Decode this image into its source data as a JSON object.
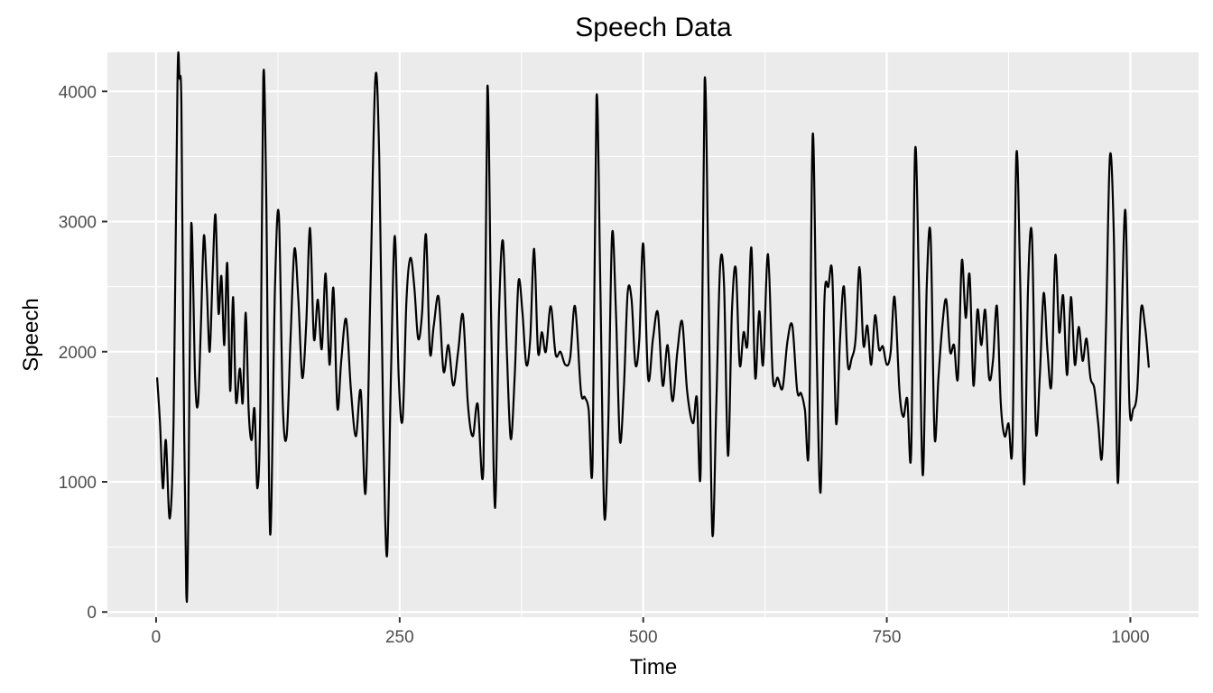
{
  "chart_data": {
    "type": "line",
    "title": "Speech Data",
    "xlabel": "Time",
    "ylabel": "Speech",
    "xlim": [
      -50,
      1070
    ],
    "ylim": [
      -40,
      4300
    ],
    "x_ticks": [
      0,
      250,
      500,
      750,
      1000
    ],
    "y_ticks": [
      0,
      1000,
      2000,
      3000,
      4000
    ],
    "x_minor_ticks": [
      125,
      375,
      625,
      875
    ],
    "y_minor_ticks": [
      500,
      1500,
      2500,
      3500
    ],
    "grid": true,
    "colors": {
      "panel": "#EBEBEB",
      "grid": "#FFFFFF",
      "line": "#000000",
      "ticks": "#333333"
    },
    "series": [
      {
        "x": [
          1,
          4,
          7,
          10,
          14,
          18,
          22,
          24,
          26,
          28,
          31,
          33,
          36,
          40,
          43,
          46,
          49,
          52,
          55,
          58,
          61,
          64,
          67,
          70,
          73,
          76,
          79,
          82,
          86,
          89,
          92,
          95,
          98,
          101,
          104,
          107,
          110,
          113,
          117,
          122,
          126,
          130,
          134,
          138,
          142,
          146,
          150,
          154,
          158,
          162,
          166,
          170,
          174,
          178,
          182,
          186,
          190,
          195,
          200,
          205,
          210,
          215,
          220,
          225,
          229,
          233,
          237,
          241,
          245,
          249,
          253,
          257,
          261,
          265,
          269,
          273,
          277,
          281,
          285,
          290,
          295,
          300,
          305,
          310,
          315,
          320,
          325,
          330,
          336,
          340,
          344,
          348,
          352,
          356,
          360,
          364,
          368,
          372,
          376,
          380,
          384,
          388,
          392,
          396,
          400,
          405,
          410,
          415,
          420,
          425,
          430,
          436,
          440,
          444,
          448,
          452,
          456,
          460,
          464,
          468,
          472,
          476,
          480,
          484,
          488,
          492,
          496,
          500,
          505,
          510,
          515,
          520,
          525,
          530,
          535,
          540,
          545,
          551,
          555,
          559,
          563,
          567,
          571,
          575,
          579,
          583,
          587,
          591,
          595,
          599,
          603,
          607,
          611,
          615,
          619,
          623,
          628,
          633,
          638,
          643,
          648,
          653,
          658,
          662,
          666,
          670,
          674,
          678,
          682,
          686,
          690,
          694,
          698,
          702,
          706,
          710,
          714,
          718,
          722,
          726,
          730,
          734,
          738,
          742,
          746,
          750,
          754,
          758,
          763,
          767,
          771,
          775,
          779,
          783,
          787,
          791,
          795,
          799,
          803,
          807,
          811,
          815,
          819,
          823,
          827,
          831,
          835,
          839,
          843,
          847,
          851,
          855,
          859,
          863,
          867,
          871,
          875,
          879,
          883,
          887,
          891,
          895,
          899,
          903,
          907,
          911,
          915,
          919,
          923,
          927,
          931,
          935,
          939,
          943,
          947,
          951,
          955,
          959,
          963,
          967,
          971,
          975,
          979,
          983,
          987,
          991,
          995,
          999,
          1003,
          1007,
          1011,
          1015,
          1019
        ],
        "values": [
          1800,
          1450,
          950,
          1320,
          720,
          1500,
          4100,
          4100,
          3900,
          2000,
          150,
          700,
          2970,
          1800,
          1600,
          2200,
          2890,
          2500,
          2000,
          2600,
          3050,
          2300,
          2580,
          2050,
          2680,
          1700,
          2420,
          1620,
          1870,
          1610,
          2300,
          1550,
          1320,
          1560,
          950,
          1600,
          4100,
          3200,
          600,
          2500,
          3050,
          1600,
          1350,
          2100,
          2790,
          2400,
          1800,
          2200,
          2950,
          2100,
          2400,
          2020,
          2600,
          1900,
          2490,
          1570,
          1930,
          2250,
          1700,
          1350,
          1700,
          920,
          2500,
          4100,
          3500,
          1500,
          430,
          1800,
          2890,
          1800,
          1480,
          2400,
          2720,
          2500,
          2100,
          2300,
          2900,
          2000,
          2200,
          2420,
          1850,
          2050,
          1740,
          2000,
          2280,
          1600,
          1350,
          1600,
          1130,
          4030,
          2200,
          800,
          2300,
          2850,
          2000,
          1330,
          1800,
          2540,
          2300,
          1900,
          2100,
          2790,
          2000,
          2150,
          2000,
          2350,
          1980,
          2000,
          1900,
          1950,
          2350,
          1700,
          1650,
          1550,
          1150,
          3950,
          2500,
          750,
          1400,
          2900,
          2300,
          1320,
          1700,
          2450,
          2400,
          1900,
          2100,
          2830,
          1800,
          2100,
          2300,
          1740,
          2050,
          1620,
          2000,
          2230,
          1700,
          1450,
          1650,
          1110,
          4080,
          2500,
          600,
          1600,
          2670,
          2500,
          1200,
          2300,
          2640,
          1900,
          2150,
          2060,
          2800,
          1800,
          2310,
          1900,
          2750,
          1800,
          1800,
          1720,
          2080,
          2200,
          1700,
          1680,
          1550,
          1280,
          3670,
          2000,
          920,
          2400,
          2500,
          2600,
          1450,
          2100,
          2500,
          1900,
          1950,
          2100,
          2650,
          2050,
          2200,
          1900,
          2280,
          2020,
          2040,
          1900,
          2000,
          2420,
          1700,
          1500,
          1640,
          1230,
          3540,
          2500,
          1050,
          2500,
          2890,
          1350,
          1800,
          2200,
          2400,
          2000,
          2050,
          1800,
          2700,
          2260,
          2590,
          1740,
          2320,
          2050,
          2320,
          1800,
          1930,
          2350,
          1600,
          1350,
          1450,
          1300,
          3510,
          2500,
          980,
          2500,
          2890,
          1400,
          1800,
          2450,
          2000,
          1750,
          2740,
          2150,
          2430,
          1820,
          2420,
          1900,
          2190,
          1930,
          2100,
          1800,
          1720,
          1450,
          1200,
          2200,
          3500,
          2900,
          1000,
          2200,
          3080,
          1600,
          1560,
          1700,
          2330,
          2200,
          1880
        ]
      }
    ]
  }
}
